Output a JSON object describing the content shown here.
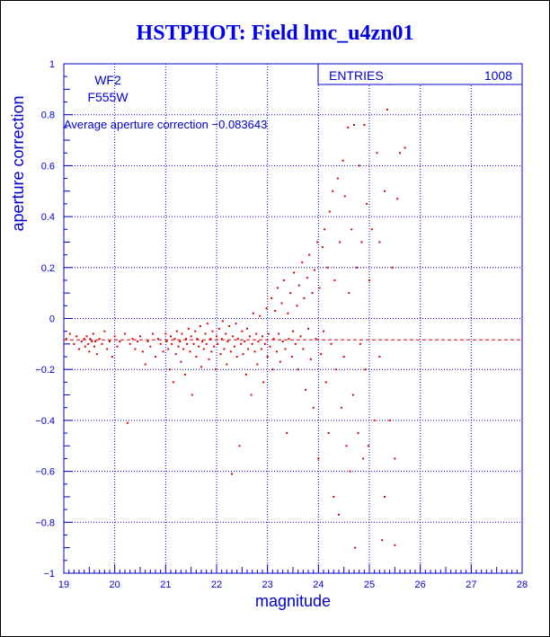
{
  "chart_data": {
    "type": "scatter",
    "title": "HSTPHOT: Field lmc_u4zn01",
    "xlabel": "magnitude",
    "ylabel": "aperture correction",
    "xlim": [
      19,
      28
    ],
    "ylim": [
      -1,
      1
    ],
    "x_ticks": [
      "19",
      "20",
      "21",
      "22",
      "23",
      "24",
      "25",
      "26",
      "27",
      "28"
    ],
    "y_ticks": [
      "1",
      "0.8",
      "0.6",
      "0.4",
      "0.2",
      "0",
      "−0.2",
      "−0.4",
      "−0.6",
      "−0.8",
      "−1"
    ],
    "grid": true,
    "stats_box": {
      "label": "ENTRIES",
      "value": "1008"
    },
    "annotations": {
      "camera": "WF2",
      "filter": "F555W",
      "average_text": "Average aperture correction −0.083643"
    },
    "average_line": -0.083643,
    "colors": {
      "points": "#dd0000",
      "axes": "#0000cc",
      "title": "#0000ee",
      "average_line": "#dd0000"
    },
    "points": [
      [
        19.05,
        -0.08
      ],
      [
        19.12,
        -0.06
      ],
      [
        19.2,
        -0.1
      ],
      [
        19.25,
        -0.07
      ],
      [
        19.3,
        -0.12
      ],
      [
        19.35,
        -0.09
      ],
      [
        19.4,
        -0.08
      ],
      [
        19.42,
        -0.11
      ],
      [
        19.45,
        -0.07
      ],
      [
        19.48,
        -0.1
      ],
      [
        19.5,
        -0.13
      ],
      [
        19.52,
        -0.08
      ],
      [
        19.55,
        -0.09
      ],
      [
        19.58,
        -0.06
      ],
      [
        19.6,
        -0.11
      ],
      [
        19.62,
        -0.09
      ],
      [
        19.65,
        -0.14
      ],
      [
        19.7,
        -0.08
      ],
      [
        19.75,
        -0.1
      ],
      [
        19.8,
        -0.05
      ],
      [
        19.85,
        -0.12
      ],
      [
        19.9,
        -0.09
      ],
      [
        19.95,
        -0.15
      ],
      [
        20.0,
        -0.07
      ],
      [
        20.05,
        -0.11
      ],
      [
        20.1,
        -0.09
      ],
      [
        20.2,
        -0.06
      ],
      [
        20.25,
        -0.41
      ],
      [
        20.3,
        -0.1
      ],
      [
        20.35,
        -0.08
      ],
      [
        20.4,
        -0.12
      ],
      [
        20.45,
        -0.09
      ],
      [
        20.5,
        -0.07
      ],
      [
        20.55,
        -0.13
      ],
      [
        20.6,
        -0.18
      ],
      [
        20.65,
        -0.09
      ],
      [
        20.7,
        -0.11
      ],
      [
        20.75,
        -0.06
      ],
      [
        20.8,
        -0.15
      ],
      [
        20.85,
        -0.08
      ],
      [
        20.9,
        -0.1
      ],
      [
        20.95,
        -0.13
      ],
      [
        21.0,
        -0.06
      ],
      [
        21.02,
        -0.09
      ],
      [
        21.05,
        -0.12
      ],
      [
        21.08,
        -0.2
      ],
      [
        21.1,
        -0.07
      ],
      [
        21.12,
        -0.1
      ],
      [
        21.15,
        -0.25
      ],
      [
        21.18,
        -0.08
      ],
      [
        21.2,
        -0.14
      ],
      [
        21.22,
        -0.05
      ],
      [
        21.25,
        -0.11
      ],
      [
        21.28,
        -0.09
      ],
      [
        21.3,
        -0.17
      ],
      [
        21.32,
        -0.06
      ],
      [
        21.35,
        -0.12
      ],
      [
        21.38,
        -0.22
      ],
      [
        21.4,
        -0.08
      ],
      [
        21.42,
        -0.1
      ],
      [
        21.45,
        -0.04
      ],
      [
        21.48,
        -0.13
      ],
      [
        21.5,
        -0.07
      ],
      [
        21.52,
        -0.3
      ],
      [
        21.55,
        -0.1
      ],
      [
        21.58,
        -0.05
      ],
      [
        21.6,
        -0.15
      ],
      [
        21.62,
        -0.08
      ],
      [
        21.65,
        -0.11
      ],
      [
        21.68,
        -0.03
      ],
      [
        21.7,
        -0.19
      ],
      [
        21.72,
        -0.09
      ],
      [
        21.75,
        -0.12
      ],
      [
        21.78,
        -0.06
      ],
      [
        21.8,
        -0.1
      ],
      [
        21.82,
        -0.02
      ],
      [
        21.85,
        -0.16
      ],
      [
        21.88,
        -0.08
      ],
      [
        21.9,
        -0.13
      ],
      [
        21.92,
        -0.05
      ],
      [
        21.95,
        -0.11
      ],
      [
        21.98,
        -0.2
      ],
      [
        22.0,
        -0.07
      ],
      [
        22.02,
        -0.1
      ],
      [
        22.05,
        -0.04
      ],
      [
        22.08,
        -0.14
      ],
      [
        22.1,
        -0.08
      ],
      [
        22.12,
        -0.01
      ],
      [
        22.15,
        -0.12
      ],
      [
        22.18,
        -0.06
      ],
      [
        22.2,
        -0.18
      ],
      [
        22.22,
        -0.09
      ],
      [
        22.25,
        -0.03
      ],
      [
        22.28,
        -0.13
      ],
      [
        22.3,
        -0.61
      ],
      [
        22.32,
        -0.07
      ],
      [
        22.35,
        -0.11
      ],
      [
        22.38,
        -0.02
      ],
      [
        22.4,
        -0.15
      ],
      [
        22.42,
        -0.08
      ],
      [
        22.45,
        -0.5
      ],
      [
        22.48,
        -0.1
      ],
      [
        22.5,
        -0.05
      ],
      [
        22.52,
        -0.14
      ],
      [
        22.55,
        -0.09
      ],
      [
        22.58,
        -0.22
      ],
      [
        22.6,
        -0.04
      ],
      [
        22.62,
        -0.12
      ],
      [
        22.65,
        -0.07
      ],
      [
        22.68,
        -0.3
      ],
      [
        22.7,
        -0.1
      ],
      [
        22.72,
        0.02
      ],
      [
        22.75,
        -0.13
      ],
      [
        22.78,
        -0.06
      ],
      [
        22.8,
        -0.18
      ],
      [
        22.82,
        -0.09
      ],
      [
        22.85,
        0.01
      ],
      [
        22.88,
        -0.12
      ],
      [
        22.9,
        -0.07
      ],
      [
        22.92,
        -0.25
      ],
      [
        22.95,
        -0.1
      ],
      [
        22.98,
        0.04
      ],
      [
        23.0,
        -0.15
      ],
      [
        23.02,
        -0.06
      ],
      [
        23.05,
        -0.11
      ],
      [
        23.08,
        0.08
      ],
      [
        23.1,
        -0.2
      ],
      [
        23.12,
        -0.08
      ],
      [
        23.15,
        0.03
      ],
      [
        23.18,
        -0.13
      ],
      [
        23.2,
        0.12
      ],
      [
        23.22,
        -0.06
      ],
      [
        23.25,
        -0.17
      ],
      [
        23.28,
        0.06
      ],
      [
        23.3,
        -0.09
      ],
      [
        23.32,
        0.15
      ],
      [
        23.35,
        -0.12
      ],
      [
        23.38,
        -0.45
      ],
      [
        23.4,
        0.02
      ],
      [
        23.42,
        -0.08
      ],
      [
        23.45,
        0.1
      ],
      [
        23.48,
        -0.15
      ],
      [
        23.5,
        -0.05
      ],
      [
        23.52,
        0.18
      ],
      [
        23.55,
        -0.1
      ],
      [
        23.58,
        0.05
      ],
      [
        23.6,
        -0.2
      ],
      [
        23.62,
        0.13
      ],
      [
        23.65,
        -0.07
      ],
      [
        23.68,
        0.22
      ],
      [
        23.7,
        -0.12
      ],
      [
        23.72,
        0.08
      ],
      [
        23.75,
        -0.28
      ],
      [
        23.78,
        0.16
      ],
      [
        23.8,
        -0.04
      ],
      [
        23.82,
        0.25
      ],
      [
        23.85,
        -0.16
      ],
      [
        23.88,
        0.1
      ],
      [
        23.9,
        -0.35
      ],
      [
        23.92,
        0.19
      ],
      [
        23.95,
        -0.08
      ],
      [
        23.98,
        0.3
      ],
      [
        24.0,
        -0.55
      ],
      [
        24.02,
        0.12
      ],
      [
        24.05,
        -0.14
      ],
      [
        24.08,
        0.28
      ],
      [
        24.1,
        -0.05
      ],
      [
        24.12,
        0.35
      ],
      [
        24.15,
        -0.25
      ],
      [
        24.18,
        0.2
      ],
      [
        24.2,
        -0.45
      ],
      [
        24.22,
        0.42
      ],
      [
        24.25,
        -0.1
      ],
      [
        24.28,
        0.5
      ],
      [
        24.3,
        -0.7
      ],
      [
        24.32,
        0.15
      ],
      [
        24.35,
        -0.2
      ],
      [
        24.38,
        0.55
      ],
      [
        24.4,
        -0.77
      ],
      [
        24.42,
        0.3
      ],
      [
        24.45,
        -0.35
      ],
      [
        24.48,
        0.62
      ],
      [
        24.5,
        -0.15
      ],
      [
        24.52,
        0.48
      ],
      [
        24.55,
        -0.5
      ],
      [
        24.58,
        0.75
      ],
      [
        24.6,
        0.1
      ],
      [
        24.62,
        -0.6
      ],
      [
        24.65,
        0.35
      ],
      [
        24.68,
        -0.3
      ],
      [
        24.7,
        0.76
      ],
      [
        24.72,
        -0.9
      ],
      [
        24.75,
        0.2
      ],
      [
        24.78,
        -0.45
      ],
      [
        24.8,
        0.6
      ],
      [
        24.82,
        -0.1
      ],
      [
        24.85,
        0.3
      ],
      [
        24.88,
        -0.55
      ],
      [
        24.9,
        0.76
      ],
      [
        24.92,
        -0.2
      ],
      [
        24.95,
        0.45
      ],
      [
        24.98,
        -0.5
      ],
      [
        25.0,
        0.15
      ],
      [
        25.05,
        0.35
      ],
      [
        25.1,
        -0.4
      ],
      [
        25.15,
        0.65
      ],
      [
        25.2,
        -0.15
      ],
      [
        25.25,
        -0.87
      ],
      [
        25.3,
        0.5
      ],
      [
        25.35,
        0.82
      ],
      [
        25.4,
        -0.4
      ],
      [
        25.45,
        0.2
      ],
      [
        25.5,
        -0.55
      ],
      [
        25.55,
        0.47
      ],
      [
        25.6,
        0.65
      ],
      [
        25.7,
        0.67
      ],
      [
        25.5,
        -0.89
      ],
      [
        25.4,
        0.92
      ],
      [
        25.2,
        0.3
      ],
      [
        25.3,
        -0.7
      ]
    ]
  }
}
